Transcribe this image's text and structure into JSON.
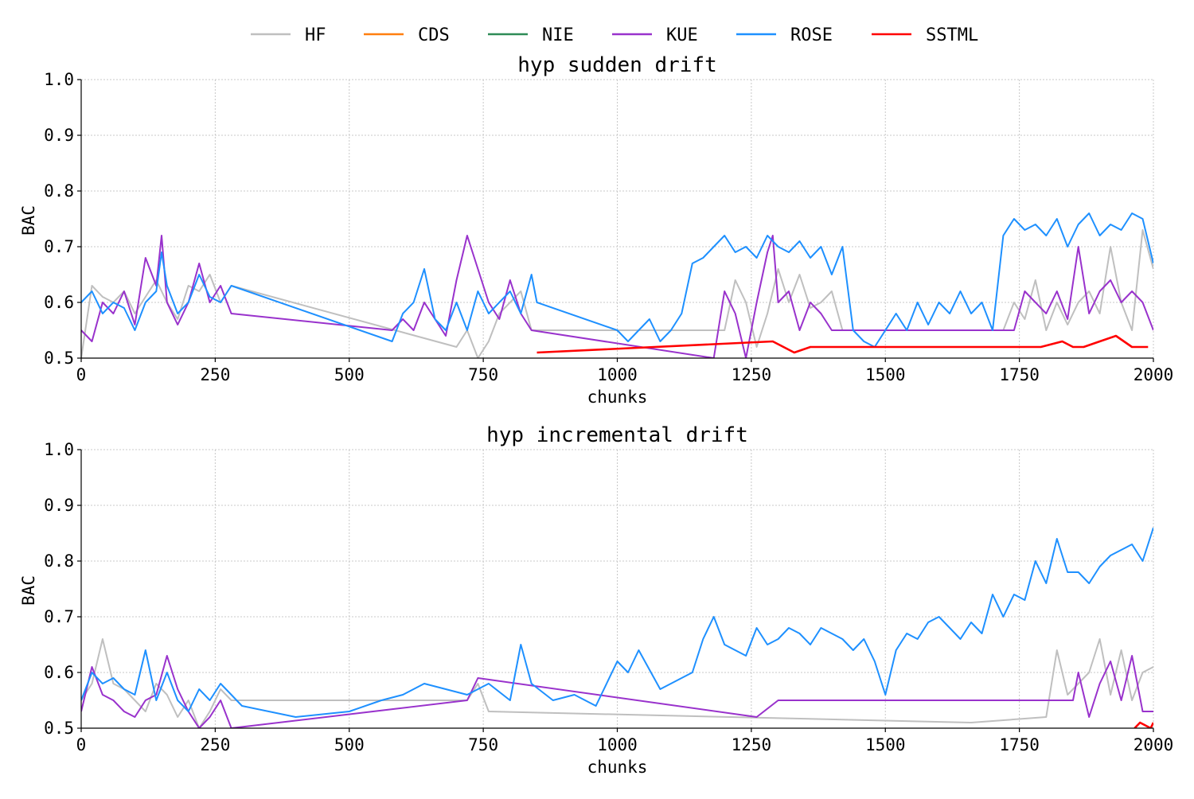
{
  "legend": [
    {
      "name": "HF",
      "color": "#bfbfbf"
    },
    {
      "name": "CDS",
      "color": "#ff7f0e"
    },
    {
      "name": "NIE",
      "color": "#2e8b57"
    },
    {
      "name": "KUE",
      "color": "#9932cc"
    },
    {
      "name": "ROSE",
      "color": "#1e90ff"
    },
    {
      "name": "SSTML",
      "color": "#ff0000"
    }
  ],
  "chart_data": [
    {
      "type": "line",
      "title": "hyp sudden drift",
      "xlabel": "chunks",
      "ylabel": "BAC",
      "xlim": [
        0,
        2000
      ],
      "ylim": [
        0.5,
        1.0
      ],
      "xticks": [
        "0",
        "250",
        "500",
        "750",
        "1000",
        "1250",
        "1500",
        "1750",
        "2000"
      ],
      "yticks": [
        "0.5",
        "0.6",
        "0.7",
        "0.8",
        "0.9",
        "1.0"
      ],
      "grid": true,
      "series": [
        {
          "name": "HF",
          "color": "#bfbfbf",
          "x": [
            0,
            20,
            40,
            60,
            80,
            100,
            120,
            140,
            160,
            180,
            200,
            220,
            240,
            260,
            280,
            700,
            720,
            740,
            760,
            780,
            800,
            820,
            840,
            1200,
            1220,
            1240,
            1260,
            1280,
            1300,
            1320,
            1340,
            1360,
            1380,
            1400,
            1420,
            1720,
            1740,
            1760,
            1780,
            1800,
            1820,
            1840,
            1860,
            1880,
            1900,
            1920,
            1940,
            1960,
            1980,
            2000
          ],
          "y": [
            0.5,
            0.63,
            0.61,
            0.6,
            0.62,
            0.58,
            0.61,
            0.64,
            0.6,
            0.57,
            0.63,
            0.62,
            0.65,
            0.6,
            0.63,
            0.52,
            0.55,
            0.5,
            0.53,
            0.58,
            0.6,
            0.62,
            0.55,
            0.55,
            0.64,
            0.6,
            0.52,
            0.58,
            0.66,
            0.6,
            0.65,
            0.59,
            0.6,
            0.62,
            0.55,
            0.55,
            0.6,
            0.57,
            0.64,
            0.55,
            0.6,
            0.56,
            0.6,
            0.62,
            0.58,
            0.7,
            0.6,
            0.55,
            0.73,
            0.66
          ]
        },
        {
          "name": "CDS",
          "color": "#ff7f0e",
          "x": [],
          "y": []
        },
        {
          "name": "NIE",
          "color": "#2e8b57",
          "x": [],
          "y": []
        },
        {
          "name": "KUE",
          "color": "#9932cc",
          "x": [
            0,
            20,
            40,
            60,
            80,
            100,
            120,
            140,
            150,
            160,
            180,
            200,
            220,
            240,
            260,
            280,
            580,
            600,
            620,
            640,
            660,
            680,
            700,
            720,
            740,
            760,
            780,
            800,
            820,
            840,
            1180,
            1200,
            1220,
            1240,
            1260,
            1280,
            1290,
            1300,
            1320,
            1340,
            1360,
            1380,
            1400,
            1740,
            1760,
            1780,
            1800,
            1820,
            1840,
            1860,
            1880,
            1900,
            1920,
            1940,
            1960,
            1980,
            2000
          ],
          "y": [
            0.55,
            0.53,
            0.6,
            0.58,
            0.62,
            0.56,
            0.68,
            0.63,
            0.72,
            0.6,
            0.56,
            0.6,
            0.67,
            0.6,
            0.63,
            0.58,
            0.55,
            0.57,
            0.55,
            0.6,
            0.57,
            0.54,
            0.64,
            0.72,
            0.66,
            0.6,
            0.57,
            0.64,
            0.58,
            0.55,
            0.5,
            0.62,
            0.58,
            0.5,
            0.6,
            0.69,
            0.72,
            0.6,
            0.62,
            0.55,
            0.6,
            0.58,
            0.55,
            0.55,
            0.62,
            0.6,
            0.58,
            0.62,
            0.57,
            0.7,
            0.58,
            0.62,
            0.64,
            0.6,
            0.62,
            0.6,
            0.55
          ]
        },
        {
          "name": "ROSE",
          "color": "#1e90ff",
          "x": [
            0,
            20,
            40,
            60,
            80,
            100,
            120,
            140,
            150,
            160,
            180,
            200,
            220,
            240,
            260,
            280,
            580,
            600,
            620,
            640,
            660,
            680,
            700,
            720,
            740,
            760,
            780,
            800,
            820,
            840,
            850,
            1000,
            1020,
            1040,
            1060,
            1080,
            1100,
            1120,
            1140,
            1160,
            1180,
            1200,
            1220,
            1240,
            1260,
            1280,
            1300,
            1320,
            1340,
            1360,
            1380,
            1400,
            1420,
            1440,
            1460,
            1480,
            1500,
            1520,
            1540,
            1560,
            1580,
            1600,
            1620,
            1640,
            1660,
            1680,
            1700,
            1720,
            1740,
            1760,
            1780,
            1800,
            1820,
            1840,
            1860,
            1880,
            1900,
            1920,
            1940,
            1960,
            1980,
            2000
          ],
          "y": [
            0.6,
            0.62,
            0.58,
            0.6,
            0.59,
            0.55,
            0.6,
            0.62,
            0.69,
            0.63,
            0.58,
            0.6,
            0.65,
            0.61,
            0.6,
            0.63,
            0.53,
            0.58,
            0.6,
            0.66,
            0.57,
            0.55,
            0.6,
            0.55,
            0.62,
            0.58,
            0.6,
            0.62,
            0.58,
            0.65,
            0.6,
            0.55,
            0.53,
            0.55,
            0.57,
            0.53,
            0.55,
            0.58,
            0.67,
            0.68,
            0.7,
            0.72,
            0.69,
            0.7,
            0.68,
            0.72,
            0.7,
            0.69,
            0.71,
            0.68,
            0.7,
            0.65,
            0.7,
            0.55,
            0.53,
            0.52,
            0.55,
            0.58,
            0.55,
            0.6,
            0.56,
            0.6,
            0.58,
            0.62,
            0.58,
            0.6,
            0.55,
            0.72,
            0.75,
            0.73,
            0.74,
            0.72,
            0.75,
            0.7,
            0.74,
            0.76,
            0.72,
            0.74,
            0.73,
            0.76,
            0.75,
            0.67
          ]
        },
        {
          "name": "SSTML",
          "color": "#ff0000",
          "x": [
            850,
            1290,
            1330,
            1360,
            1400,
            1420,
            1790,
            1830,
            1850,
            1870,
            1900,
            1930,
            1960,
            1990
          ],
          "y": [
            0.51,
            0.53,
            0.51,
            0.52,
            0.52,
            0.52,
            0.52,
            0.53,
            0.52,
            0.52,
            0.53,
            0.54,
            0.52,
            0.52
          ]
        }
      ]
    },
    {
      "type": "line",
      "title": "hyp incremental drift",
      "xlabel": "chunks",
      "ylabel": "BAC",
      "xlim": [
        0,
        2000
      ],
      "ylim": [
        0.5,
        1.0
      ],
      "xticks": [
        "0",
        "250",
        "500",
        "750",
        "1000",
        "1250",
        "1500",
        "1750",
        "2000"
      ],
      "yticks": [
        "0.5",
        "0.6",
        "0.7",
        "0.8",
        "0.9",
        "1.0"
      ],
      "grid": true,
      "series": [
        {
          "name": "HF",
          "color": "#bfbfbf",
          "x": [
            0,
            20,
            40,
            60,
            80,
            100,
            120,
            140,
            160,
            180,
            200,
            220,
            240,
            260,
            280,
            720,
            740,
            760,
            1660,
            1800,
            1820,
            1840,
            1860,
            1880,
            1900,
            1920,
            1940,
            1960,
            1980,
            2000
          ],
          "y": [
            0.55,
            0.58,
            0.66,
            0.58,
            0.57,
            0.55,
            0.53,
            0.58,
            0.56,
            0.52,
            0.55,
            0.5,
            0.53,
            0.57,
            0.55,
            0.55,
            0.58,
            0.53,
            0.51,
            0.52,
            0.64,
            0.56,
            0.58,
            0.6,
            0.66,
            0.56,
            0.64,
            0.55,
            0.6,
            0.61
          ]
        },
        {
          "name": "CDS",
          "color": "#ff7f0e",
          "x": [],
          "y": []
        },
        {
          "name": "NIE",
          "color": "#2e8b57",
          "x": [],
          "y": []
        },
        {
          "name": "KUE",
          "color": "#9932cc",
          "x": [
            0,
            20,
            40,
            60,
            80,
            100,
            120,
            140,
            160,
            180,
            200,
            220,
            240,
            260,
            280,
            720,
            740,
            1260,
            1300,
            1850,
            1860,
            1880,
            1900,
            1920,
            1940,
            1960,
            1980,
            2000
          ],
          "y": [
            0.53,
            0.61,
            0.56,
            0.55,
            0.53,
            0.52,
            0.55,
            0.56,
            0.63,
            0.57,
            0.53,
            0.5,
            0.52,
            0.55,
            0.5,
            0.55,
            0.59,
            0.52,
            0.55,
            0.55,
            0.6,
            0.52,
            0.58,
            0.62,
            0.55,
            0.63,
            0.53,
            0.53
          ]
        },
        {
          "name": "ROSE",
          "color": "#1e90ff",
          "x": [
            0,
            20,
            40,
            60,
            80,
            100,
            120,
            140,
            160,
            180,
            200,
            220,
            240,
            260,
            280,
            300,
            400,
            500,
            560,
            600,
            640,
            680,
            720,
            760,
            800,
            820,
            840,
            880,
            920,
            960,
            1000,
            1020,
            1040,
            1080,
            1120,
            1140,
            1160,
            1180,
            1200,
            1240,
            1260,
            1280,
            1300,
            1320,
            1340,
            1360,
            1380,
            1400,
            1420,
            1440,
            1460,
            1480,
            1500,
            1520,
            1540,
            1560,
            1580,
            1600,
            1620,
            1640,
            1660,
            1680,
            1700,
            1720,
            1740,
            1760,
            1780,
            1800,
            1820,
            1840,
            1860,
            1880,
            1900,
            1920,
            1940,
            1960,
            1980,
            2000
          ],
          "y": [
            0.55,
            0.6,
            0.58,
            0.59,
            0.57,
            0.56,
            0.64,
            0.55,
            0.6,
            0.55,
            0.53,
            0.57,
            0.55,
            0.58,
            0.56,
            0.54,
            0.52,
            0.53,
            0.55,
            0.56,
            0.58,
            0.57,
            0.56,
            0.58,
            0.55,
            0.65,
            0.58,
            0.55,
            0.56,
            0.54,
            0.62,
            0.6,
            0.64,
            0.57,
            0.59,
            0.6,
            0.66,
            0.7,
            0.65,
            0.63,
            0.68,
            0.65,
            0.66,
            0.68,
            0.67,
            0.65,
            0.68,
            0.67,
            0.66,
            0.64,
            0.66,
            0.62,
            0.56,
            0.64,
            0.67,
            0.66,
            0.69,
            0.7,
            0.68,
            0.66,
            0.69,
            0.67,
            0.74,
            0.7,
            0.74,
            0.73,
            0.8,
            0.76,
            0.84,
            0.78,
            0.78,
            0.76,
            0.79,
            0.81,
            0.82,
            0.83,
            0.8,
            0.86
          ]
        },
        {
          "name": "SSTML",
          "color": "#ff0000",
          "x": [
            1965,
            1975,
            1995,
            2000
          ],
          "y": [
            0.5,
            0.51,
            0.5,
            0.51
          ]
        }
      ]
    }
  ]
}
